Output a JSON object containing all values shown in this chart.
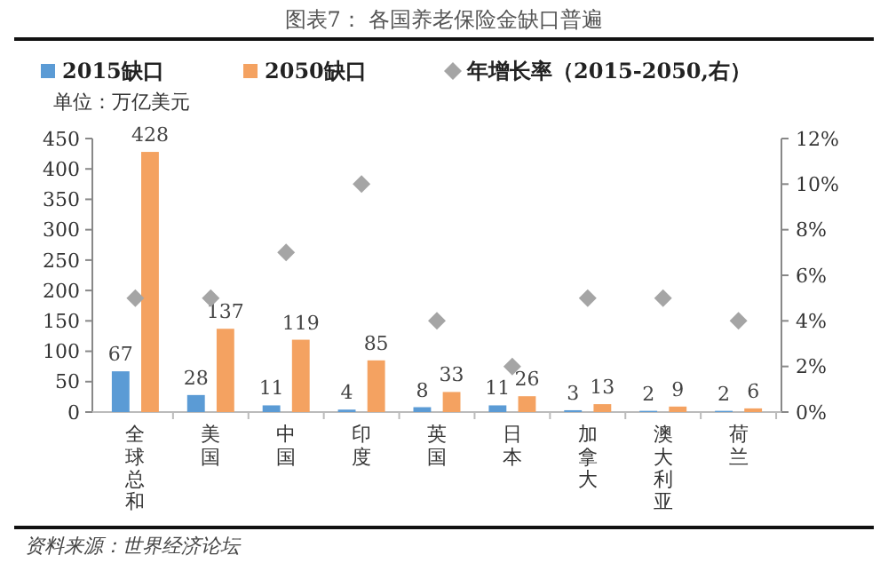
{
  "chart_data": {
    "type": "bar",
    "title": "图表7： 各国养老保险金缺口普遍",
    "subtitle": "单位：万亿美元",
    "categories": [
      "全球总和",
      "美国",
      "中国",
      "印度",
      "英国",
      "日本",
      "加拿大",
      "澳大利亚",
      "荷兰"
    ],
    "series": [
      {
        "name": "2015缺口",
        "color": "#5b9bd5",
        "values": [
          67,
          28,
          11,
          4,
          8,
          11,
          3,
          2,
          2
        ],
        "value_labels": [
          "67",
          "28",
          "11",
          "4",
          "8",
          "11",
          "3",
          "2",
          "2"
        ]
      },
      {
        "name": "2050缺口",
        "color": "#f4a261",
        "values": [
          428,
          137,
          119,
          85,
          33,
          26,
          13,
          9,
          6
        ],
        "value_labels": [
          "428",
          "137",
          "119",
          "85",
          "33",
          "26",
          "13",
          "9",
          "6"
        ]
      },
      {
        "name": "年增长率（2015-2050,右）",
        "type": "scatter",
        "axis": "y2",
        "marker": "diamond",
        "color": "#a5a5a5",
        "values": [
          5,
          5,
          7,
          10,
          4,
          2,
          5,
          5,
          4
        ]
      }
    ],
    "ylim": [
      0,
      450
    ],
    "yticks": [
      0,
      50,
      100,
      150,
      200,
      250,
      300,
      350,
      400,
      450
    ],
    "y2lim": [
      0,
      12
    ],
    "y2ticks": [
      {
        "value": 0,
        "label": "0%"
      },
      {
        "value": 2,
        "label": "2%"
      },
      {
        "value": 4,
        "label": "4%"
      },
      {
        "value": 6,
        "label": "6%"
      },
      {
        "value": 8,
        "label": "8%"
      },
      {
        "value": 10,
        "label": "10%"
      },
      {
        "value": 12,
        "label": "12%"
      }
    ],
    "legend": "top",
    "annotations": [
      "资料来源：世界经济论坛"
    ]
  }
}
